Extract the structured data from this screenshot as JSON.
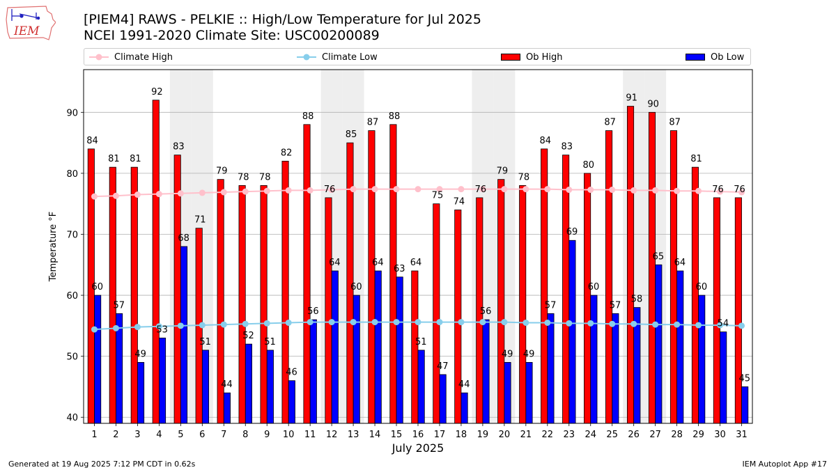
{
  "header": {
    "title_line1": "[PIEM4] RAWS - PELKIE :: High/Low Temperature for Jul 2025",
    "title_line2": "NCEI 1991-2020 Climate Site: USC00200089",
    "logo_text": "IEM"
  },
  "footer": {
    "generated": "Generated at 19 Aug 2025 7:12 PM CDT in 0.62s",
    "app": "IEM Autoplot App #17"
  },
  "colors": {
    "ob_high": "#ff0000",
    "ob_low": "#0000ff",
    "climate_high": "#ffc0cb",
    "climate_low": "#87ceeb",
    "weekend_shade": "#eeeeee",
    "grid": "#b0b0b0"
  },
  "chart_data": {
    "type": "bar",
    "xlabel": "July 2025",
    "ylabel": "Temperature °F",
    "ylim": [
      39,
      97
    ],
    "yticks": [
      40,
      50,
      60,
      70,
      80,
      90
    ],
    "grid": "horizontal",
    "legend_position": "top",
    "categories": [
      "1",
      "2",
      "3",
      "4",
      "5",
      "6",
      "7",
      "8",
      "9",
      "10",
      "11",
      "12",
      "13",
      "14",
      "15",
      "16",
      "17",
      "18",
      "19",
      "20",
      "21",
      "22",
      "23",
      "24",
      "25",
      "26",
      "27",
      "28",
      "29",
      "30",
      "31"
    ],
    "shaded_days": [
      5,
      6,
      12,
      13,
      19,
      20,
      26,
      27
    ],
    "series": [
      {
        "name": "Ob High",
        "kind": "bar",
        "color": "#ff0000",
        "values": [
          84,
          81,
          81,
          92,
          83,
          71,
          79,
          78,
          78,
          82,
          88,
          76,
          85,
          87,
          88,
          64,
          75,
          74,
          76,
          79,
          78,
          84,
          83,
          80,
          87,
          91,
          90,
          87,
          81,
          76,
          76
        ]
      },
      {
        "name": "Ob Low",
        "kind": "bar",
        "color": "#0000ff",
        "values": [
          60,
          57,
          49,
          53,
          68,
          51,
          44,
          52,
          51,
          46,
          56,
          64,
          60,
          64,
          63,
          51,
          47,
          44,
          56,
          49,
          49,
          57,
          69,
          60,
          57,
          58,
          65,
          64,
          60,
          54,
          45
        ]
      },
      {
        "name": "Climate High",
        "kind": "line",
        "color": "#ffc0cb",
        "values": [
          76.2,
          76.3,
          76.5,
          76.6,
          76.7,
          76.8,
          76.9,
          77.0,
          77.1,
          77.2,
          77.2,
          77.3,
          77.4,
          77.4,
          77.4,
          77.4,
          77.4,
          77.4,
          77.4,
          77.4,
          77.4,
          77.4,
          77.3,
          77.3,
          77.3,
          77.2,
          77.2,
          77.1,
          77.1,
          77.0,
          76.9
        ]
      },
      {
        "name": "Climate Low",
        "kind": "line",
        "color": "#87ceeb",
        "values": [
          54.4,
          54.6,
          54.8,
          54.9,
          55.0,
          55.1,
          55.2,
          55.3,
          55.4,
          55.5,
          55.6,
          55.6,
          55.6,
          55.6,
          55.6,
          55.6,
          55.6,
          55.6,
          55.6,
          55.6,
          55.5,
          55.5,
          55.4,
          55.4,
          55.3,
          55.3,
          55.2,
          55.2,
          55.1,
          55.1,
          55.0
        ]
      }
    ]
  }
}
